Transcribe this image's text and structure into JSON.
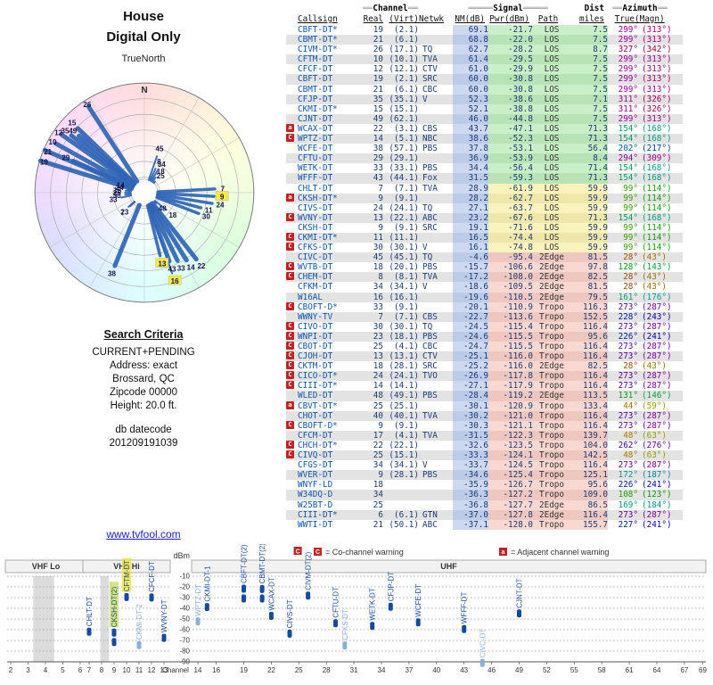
{
  "title": {
    "line1": "House",
    "line2": "Digital Only"
  },
  "radar": {
    "label": "TrueNorth",
    "north": "N"
  },
  "search": {
    "heading": "Search Criteria",
    "lines": [
      "CURRENT+PENDING",
      "Address: exact",
      "Brossard, QC",
      "Zipcode 00000",
      "Height: 20.0 ft."
    ],
    "db_label": "db datecode",
    "db_value": "201209191039"
  },
  "link": {
    "text": "www.tvfool.com"
  },
  "legend": {
    "co_symbol": "C",
    "co_text": "= Co-channel warning",
    "adj_symbol": "a",
    "adj_text": "= Adjacent channel warning"
  },
  "colors": {
    "accent_blue": "#164a9a",
    "muted_blue": "#8ab0d8",
    "warning_red": "#c22222"
  },
  "table": {
    "groups": {
      "channel": {
        "deco": "══",
        "label": "Channel"
      },
      "signal": {
        "deco": "═════",
        "label": "Signal"
      },
      "dist": "Dist",
      "azimuth": {
        "deco": "══",
        "label": "Azimuth"
      }
    },
    "cols": [
      "Callsign",
      "Real",
      "(Virt)",
      "Netwk",
      "NM(dB)",
      "Pwr(dBm)",
      "Path",
      "miles",
      "True",
      "(Magn)"
    ],
    "rows": [
      [
        "CBFT-DT*",
        19,
        "(2.1)",
        "",
        69.1,
        -21.7,
        "LOS",
        7.5,
        299,
        313,
        ""
      ],
      [
        "CBMT-DT*",
        21,
        "(6.1)",
        "",
        68.8,
        -22.0,
        "LOS",
        7.5,
        299,
        313,
        ""
      ],
      [
        "CIVM-DT*",
        26,
        "(17.1)",
        "TQ",
        62.7,
        -28.2,
        "LOS",
        8.7,
        327,
        342,
        ""
      ],
      [
        "CFTM-DT",
        10,
        "(10.1)",
        "TVA",
        61.4,
        -29.5,
        "LOS",
        7.5,
        299,
        313,
        ""
      ],
      [
        "CFCF-DT",
        12,
        "(12.1)",
        "CTV",
        61.0,
        -29.9,
        "LOS",
        7.5,
        299,
        313,
        ""
      ],
      [
        "CBFT-DT",
        19,
        "(2.1)",
        "SRC",
        60.0,
        -30.8,
        "LOS",
        7.5,
        299,
        313,
        ""
      ],
      [
        "CBMT-DT",
        21,
        "(6.1)",
        "CBC",
        60.0,
        -30.8,
        "LOS",
        7.5,
        299,
        313,
        ""
      ],
      [
        "CFJP-DT",
        35,
        "(35.1)",
        "V",
        52.3,
        -38.6,
        "LOS",
        7.1,
        311,
        326,
        ""
      ],
      [
        "CKMI-DT*",
        15,
        "(15.1)",
        "",
        52.1,
        -38.8,
        "LOS",
        7.5,
        311,
        326,
        ""
      ],
      [
        "CJNT-DT",
        49,
        "(62.1)",
        "",
        46.0,
        -44.8,
        "LOS",
        7.5,
        299,
        313,
        ""
      ],
      [
        "WCAX-DT",
        22,
        "(3.1)",
        "CBS",
        43.7,
        -47.1,
        "LOS",
        71.3,
        154,
        168,
        "a"
      ],
      [
        "WPTZ-DT",
        14,
        "(5.1)",
        "NBC",
        38.6,
        -52.3,
        "LOS",
        71.3,
        154,
        168,
        "C"
      ],
      [
        "WCFE-DT",
        38,
        "(57.1)",
        "PBS",
        37.8,
        -53.1,
        "LOS",
        56.4,
        202,
        217,
        ""
      ],
      [
        "CFTU-DT",
        29,
        "(29.1)",
        "",
        36.9,
        -53.9,
        "LOS",
        8.4,
        294,
        309,
        ""
      ],
      [
        "WETK-DT",
        33,
        "(33.1)",
        "PBS",
        34.4,
        -56.4,
        "LOS",
        71.4,
        154,
        168,
        ""
      ],
      [
        "WFFF-DT",
        43,
        "(44.1)",
        "Fox",
        31.5,
        -59.3,
        "LOS",
        71.3,
        154,
        168,
        ""
      ],
      [
        "CHLT-DT",
        7,
        "(7.1)",
        "TVA",
        28.9,
        -61.9,
        "LOS",
        59.9,
        99,
        114,
        ""
      ],
      [
        "CKSH-DT*",
        9,
        "(9.1)",
        "",
        28.2,
        -62.7,
        "LOS",
        59.9,
        99,
        114,
        "a"
      ],
      [
        "CIVS-DT",
        24,
        "(24.1)",
        "TQ",
        27.1,
        -63.7,
        "LOS",
        59.9,
        99,
        114,
        ""
      ],
      [
        "WVNY-DT",
        13,
        "(22.1)",
        "ABC",
        23.2,
        -67.6,
        "LOS",
        71.3,
        154,
        168,
        "C"
      ],
      [
        "CKSH-DT",
        9,
        "(9.1)",
        "SRC",
        19.1,
        -71.6,
        "LOS",
        59.9,
        99,
        114,
        ""
      ],
      [
        "CKMI-DT*",
        11,
        "(11.1)",
        "",
        16.5,
        -74.4,
        "LOS",
        59.9,
        99,
        114,
        "C"
      ],
      [
        "CFKS-DT",
        30,
        "(30.1)",
        "V",
        16.1,
        -74.8,
        "LOS",
        59.9,
        99,
        114,
        "C"
      ],
      [
        "CIVC-DT",
        45,
        "(45.1)",
        "TQ",
        -4.6,
        -95.4,
        "2Edge",
        81.5,
        28,
        43,
        ""
      ],
      [
        "WVTB-DT",
        18,
        "(20.1)",
        "PBS",
        -15.7,
        -106.6,
        "2Edge",
        97.8,
        128,
        143,
        "C"
      ],
      [
        "CHEM-DT",
        8,
        "(8.1)",
        "TVA",
        -17.2,
        -108.0,
        "2Edge",
        82.5,
        28,
        43,
        "C"
      ],
      [
        "CFKM-DT",
        34,
        "(34.1)",
        "V",
        -18.6,
        -109.5,
        "2Edge",
        81.5,
        28,
        43,
        ""
      ],
      [
        "W16AL",
        16,
        "(16.1)",
        "",
        -19.6,
        -110.5,
        "2Edge",
        79.5,
        161,
        176,
        ""
      ],
      [
        "CBOFT-D*",
        33,
        "(9.1)",
        "",
        -20.1,
        -110.9,
        "Tropo",
        116.3,
        273,
        287,
        "C"
      ],
      [
        "WWNY-TV",
        7,
        "(7.1)",
        "CBS",
        -22.7,
        -113.6,
        "Tropo",
        152.5,
        228,
        243,
        ""
      ],
      [
        "CIVO-DT",
        30,
        "(30.1)",
        "TQ",
        -24.5,
        -115.4,
        "Tropo",
        116.4,
        273,
        287,
        "C"
      ],
      [
        "WNPI-DT",
        23,
        "(18.1)",
        "PBS",
        -24.6,
        -115.5,
        "Tropo",
        95.6,
        226,
        241,
        "C"
      ],
      [
        "CBOT-DT",
        25,
        "(4.1)",
        "CBC",
        -24.7,
        -115.5,
        "Tropo",
        116.4,
        273,
        287,
        "C"
      ],
      [
        "CJOH-DT",
        13,
        "(13.1)",
        "CTV",
        -25.1,
        -116.0,
        "Tropo",
        116.4,
        273,
        287,
        "C"
      ],
      [
        "CKTM-DT",
        18,
        "(28.1)",
        "SRC",
        -25.2,
        -116.0,
        "2Edge",
        82.5,
        28,
        43,
        "C"
      ],
      [
        "CICO-DT*",
        24,
        "(24.1)",
        "TVO",
        -26.9,
        -117.8,
        "Tropo",
        116.4,
        273,
        287,
        "C"
      ],
      [
        "CIII-DT*",
        14,
        "(14.1)",
        "",
        -27.1,
        -117.9,
        "Tropo",
        116.4,
        273,
        287,
        "C"
      ],
      [
        "WLED-DT",
        48,
        "(49.1)",
        "PBS",
        -28.4,
        -119.2,
        "2Edge",
        113.5,
        131,
        146,
        ""
      ],
      [
        "CBVT-DT*",
        25,
        "(25.1)",
        "",
        -30.1,
        -120.9,
        "Tropo",
        133.4,
        44,
        59,
        "a"
      ],
      [
        "CHOT-DT",
        40,
        "(40.1)",
        "TVA",
        -30.2,
        -121.0,
        "Tropo",
        116.4,
        273,
        287,
        ""
      ],
      [
        "CBOFT-D*",
        9,
        "(9.1)",
        "",
        -30.3,
        -121.1,
        "Tropo",
        116.4,
        273,
        287,
        "C"
      ],
      [
        "CFCM-DT",
        17,
        "(4.1)",
        "TVA",
        -31.5,
        -122.3,
        "Tropo",
        139.7,
        48,
        63,
        ""
      ],
      [
        "CHCH-DT*",
        22,
        "(22.1)",
        "",
        -32.6,
        -123.5,
        "Tropo",
        104.0,
        262,
        276,
        "C"
      ],
      [
        "CIVQ-DT",
        25,
        "(15.1)",
        "",
        -33.3,
        -124.1,
        "Tropo",
        142.5,
        48,
        63,
        "C"
      ],
      [
        "CFGS-DT",
        34,
        "(34.1)",
        "V",
        -33.7,
        -124.5,
        "Tropo",
        116.4,
        273,
        287,
        ""
      ],
      [
        "WVER-DT",
        9,
        "(28.1)",
        "PBS",
        -34.6,
        -125.4,
        "Tropo",
        125.1,
        172,
        187,
        ""
      ],
      [
        "WNYF-LD",
        18,
        "",
        "",
        -35.9,
        -126.7,
        "Tropo",
        95.6,
        226,
        241,
        ""
      ],
      [
        "W34DQ-D",
        34,
        "",
        "",
        -36.3,
        -127.2,
        "Tropo",
        109.0,
        108,
        123,
        ""
      ],
      [
        "W25BT-D",
        25,
        "",
        "",
        -36.8,
        -127.7,
        "2Edge",
        86.5,
        169,
        184,
        ""
      ],
      [
        "CIII-DT*",
        6,
        "(6.1)",
        "GTN",
        -37.0,
        -127.8,
        "2Edge",
        116.4,
        273,
        287,
        ""
      ],
      [
        "WWTI-DT",
        21,
        "(50.1)",
        "ABC",
        -37.1,
        -128.0,
        "Tropo",
        155.7,
        227,
        241,
        ""
      ]
    ]
  },
  "chart_data": [
    {
      "type": "radar",
      "title": "TrueNorth",
      "units": "azimuth degrees true, beam length ~ noise margin dB",
      "rings": 7,
      "beams": [
        {
          "az": 299,
          "ch": 19,
          "nm": 69.1
        },
        {
          "az": 299,
          "ch": 21,
          "nm": 68.8
        },
        {
          "az": 299,
          "ch": 10,
          "nm": 61.4
        },
        {
          "az": 299,
          "ch": 12,
          "nm": 61.0
        },
        {
          "az": 299,
          "ch": 49,
          "nm": 46.0
        },
        {
          "az": 327,
          "ch": 26,
          "nm": 62.7
        },
        {
          "az": 311,
          "ch": 35,
          "nm": 52.3
        },
        {
          "az": 311,
          "ch": 15,
          "nm": 52.1
        },
        {
          "az": 294,
          "ch": 29,
          "nm": 36.9
        },
        {
          "az": 154,
          "ch": 22,
          "nm": 43.7
        },
        {
          "az": 154,
          "ch": 14,
          "nm": 38.6
        },
        {
          "az": 154,
          "ch": 33,
          "nm": 34.4
        },
        {
          "az": 154,
          "ch": 43,
          "nm": 31.5
        },
        {
          "az": 154,
          "ch": 13,
          "nm": 23.2,
          "hl": true
        },
        {
          "az": 202,
          "ch": 38,
          "nm": 37.8
        },
        {
          "az": 99,
          "ch": 7,
          "nm": 28.9
        },
        {
          "az": 99,
          "ch": 9,
          "nm": 28.2,
          "hl": true
        },
        {
          "az": 99,
          "ch": 24,
          "nm": 27.1
        },
        {
          "az": 99,
          "ch": 11,
          "nm": 16.5
        },
        {
          "az": 99,
          "ch": 30,
          "nm": 16.1
        },
        {
          "az": 28,
          "ch": 45,
          "nm": -4.6
        },
        {
          "az": 28,
          "ch": 8,
          "nm": -17.2
        },
        {
          "az": 28,
          "ch": 34,
          "nm": -18.6
        },
        {
          "az": 28,
          "ch": 18,
          "nm": -25.2
        },
        {
          "az": 128,
          "ch": 18,
          "nm": -15.7
        },
        {
          "az": 161,
          "ch": 16,
          "nm": -19.6,
          "hl": true,
          "pending": true
        },
        {
          "az": 273,
          "ch": 33,
          "nm": -20.1
        },
        {
          "az": 273,
          "ch": 30,
          "nm": -24.5
        },
        {
          "az": 273,
          "ch": 25,
          "nm": -24.7
        },
        {
          "az": 273,
          "ch": 13,
          "nm": -25.1
        },
        {
          "az": 273,
          "ch": 24,
          "nm": -26.9
        },
        {
          "az": 273,
          "ch": 14,
          "nm": -27.1
        },
        {
          "az": 228,
          "ch": 7,
          "nm": -22.7
        },
        {
          "az": 226,
          "ch": 23,
          "nm": -24.6
        },
        {
          "az": 131,
          "ch": 48,
          "nm": -28.4
        },
        {
          "az": 44,
          "ch": 25,
          "nm": -30.1
        }
      ]
    },
    {
      "type": "scatter",
      "title": "",
      "xlabel": "Channel",
      "ylabel": "dBm",
      "ylim": [
        -90,
        -10
      ],
      "yticks": [
        -10,
        -20,
        -30,
        -40,
        -50,
        -60,
        -70,
        -80,
        -90
      ],
      "xticks": [
        2,
        3,
        4,
        5,
        6,
        7,
        8,
        9,
        10,
        11,
        12,
        13,
        14,
        16,
        19,
        22,
        25,
        28,
        31,
        34,
        37,
        40,
        43,
        46,
        49,
        52,
        55,
        58,
        61,
        64,
        67,
        69
      ],
      "bands": [
        {
          "label": "VHF Lo",
          "from": 2,
          "to": 6
        },
        {
          "label": "VHF Hi",
          "from": 7,
          "to": 13
        },
        {
          "label": "UHF",
          "from": 14,
          "to": 69
        }
      ],
      "shaded": [
        {
          "from": 3.3,
          "to": 4.5
        },
        {
          "from": 7.9,
          "to": 8.6
        }
      ],
      "points": [
        {
          "label": "CHLT-DT",
          "ch": 7,
          "dbm": [
            -61.9
          ]
        },
        {
          "label": "CKSH-DT(2)",
          "ch": 9,
          "dbm": [
            -62.7,
            -71.6
          ],
          "highlight": "#cde26b"
        },
        {
          "label": "CFTM-DT",
          "ch": 10,
          "dbm": [
            -29.5
          ],
          "highlight": "#f5e43f"
        },
        {
          "label": "CKMI-DT-2",
          "ch": 11,
          "dbm": [
            -74.4
          ],
          "muted": true
        },
        {
          "label": "CFCF-DT",
          "ch": 12,
          "dbm": [
            -29.9
          ]
        },
        {
          "label": "WVNY-DT",
          "ch": 13,
          "dbm": [
            -67.6
          ]
        },
        {
          "label": "WPTZ-DT",
          "ch": 14,
          "dbm": [
            -52.3
          ],
          "muted": true
        },
        {
          "label": "CKMI-DT-1",
          "ch": 15,
          "dbm": [
            -38.8
          ]
        },
        {
          "label": "CBFT-DT(2)",
          "ch": 19,
          "dbm": [
            -21.7,
            -30.8
          ]
        },
        {
          "label": "CBMT-DT(2)",
          "ch": 21,
          "dbm": [
            -22.0,
            -30.8
          ]
        },
        {
          "label": "WCAX-DT",
          "ch": 22,
          "dbm": [
            -47.1
          ]
        },
        {
          "label": "CIVS-DT",
          "ch": 24,
          "dbm": [
            -63.7
          ]
        },
        {
          "label": "CIVM-DT(2)",
          "ch": 26,
          "dbm": [
            -28.2
          ],
          "warn": "C"
        },
        {
          "label": "CFTU-DT",
          "ch": 29,
          "dbm": [
            -53.9
          ]
        },
        {
          "label": "CFKS-DT",
          "ch": 30,
          "dbm": [
            -74.8
          ],
          "muted": true
        },
        {
          "label": "WETK-DT",
          "ch": 33,
          "dbm": [
            -56.4
          ]
        },
        {
          "label": "CFJP-DT",
          "ch": 35,
          "dbm": [
            -38.6
          ]
        },
        {
          "label": "WCFE-DT",
          "ch": 38,
          "dbm": [
            -53.1
          ]
        },
        {
          "label": "WFFF-DT",
          "ch": 43,
          "dbm": [
            -59.3
          ]
        },
        {
          "label": "CIVC-DT",
          "ch": 45,
          "dbm": [
            -95.4
          ],
          "muted": true
        },
        {
          "label": "CJNT-DT",
          "ch": 49,
          "dbm": [
            -44.8
          ]
        }
      ]
    }
  ]
}
